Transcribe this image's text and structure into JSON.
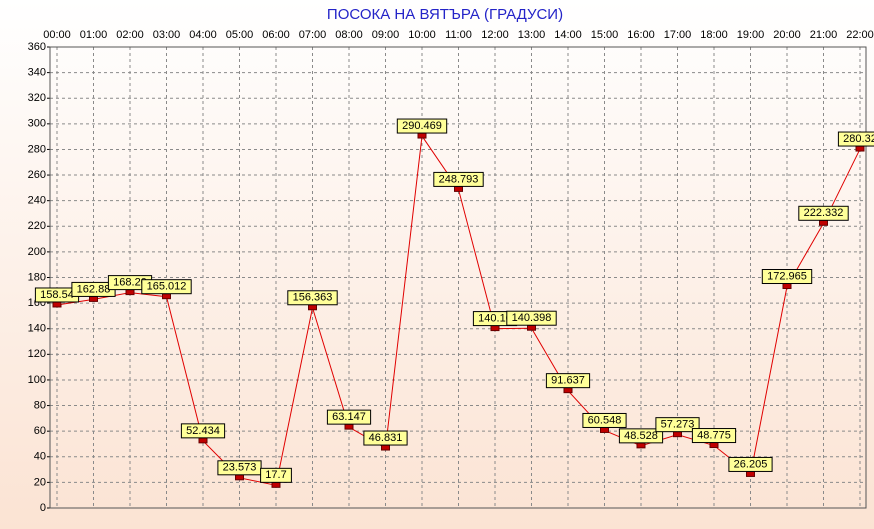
{
  "chart_data": {
    "type": "line",
    "title": "ПОСОКА НА ВЯТЪРА    (ГРАДУСИ)",
    "categories": [
      "00:00",
      "01:00",
      "02:00",
      "03:00",
      "04:00",
      "05:00",
      "06:00",
      "07:00",
      "08:00",
      "09:00",
      "10:00",
      "11:00",
      "12:00",
      "13:00",
      "14:00",
      "15:00",
      "16:00",
      "17:00",
      "18:00",
      "19:00",
      "20:00",
      "21:00",
      "22:00"
    ],
    "values": [
      158.54,
      162.88,
      168.2,
      165.012,
      52.434,
      23.573,
      17.7,
      156.363,
      63.147,
      46.831,
      290.469,
      248.793,
      140.1,
      140.398,
      91.637,
      60.548,
      48.528,
      57.273,
      48.775,
      26.205,
      172.965,
      222.332,
      280.32
    ],
    "value_labels": [
      "158.54",
      "162.88",
      "168.20",
      "165.012",
      "52.434",
      "23.573",
      "17.7",
      "156.363",
      "63.147",
      "46.831",
      "290.469",
      "248.793",
      "140.10",
      "140.398",
      "91.637",
      "60.548",
      "48.528",
      "57.273",
      "48.775",
      "26.205",
      "172.965",
      "222.332",
      "280.32"
    ],
    "color": "#e00000",
    "marker_color": "#c00000",
    "label_fill": "#ffff99",
    "ylim": [
      0,
      360
    ],
    "yticks": [
      0,
      20,
      40,
      60,
      80,
      100,
      120,
      140,
      160,
      180,
      200,
      220,
      240,
      260,
      280,
      300,
      320,
      340,
      360
    ],
    "grid": true
  }
}
